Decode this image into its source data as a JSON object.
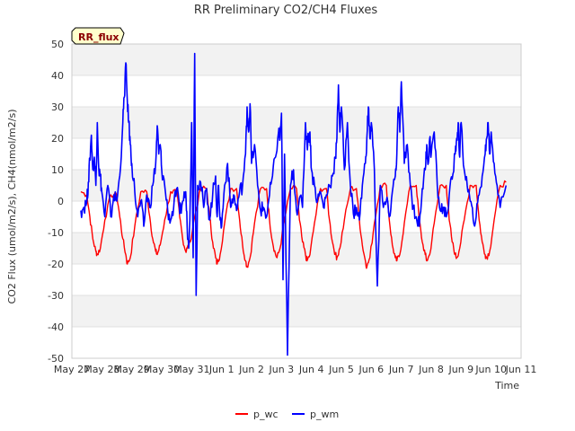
{
  "chart_data": {
    "type": "line",
    "title": "RR Preliminary CO2/CH4 Fluxes",
    "xlabel": "Time",
    "ylabel": "CO2 Flux (umol/m2/s), CH4(nmol/m2/s)",
    "badge": "RR_flux",
    "ylim": [
      -50,
      50
    ],
    "xlim": [
      0,
      15
    ],
    "yticks": [
      -50,
      -40,
      -30,
      -20,
      -10,
      0,
      10,
      20,
      30,
      40,
      50
    ],
    "xtick_labels": [
      "May 27",
      "May 28",
      "May 29",
      "May 30",
      "May 31",
      "Jun 1",
      "Jun 2",
      "Jun 3",
      "Jun 4",
      "Jun 5",
      "Jun 6",
      "Jun 7",
      "Jun 8",
      "Jun 9",
      "Jun 10",
      "Jun 11"
    ],
    "grid": true,
    "legend_position": "bottom",
    "colors": {
      "p_wc": "#ff0000",
      "p_wm": "#0000ff",
      "band": "#f2f2f2",
      "badge_bg": "#ffffcc"
    },
    "series": [
      {
        "name": "p_wc",
        "x": [
          0.3,
          0.5,
          0.6,
          0.7,
          0.8,
          0.85,
          0.95,
          1.1,
          1.3,
          1.5,
          1.6,
          1.7,
          1.8,
          1.85,
          1.95,
          2.1,
          2.3,
          2.5,
          2.6,
          2.7,
          2.8,
          2.85,
          2.95,
          3.1,
          3.3,
          3.5,
          3.6,
          3.7,
          3.8,
          3.85,
          3.95,
          4.1,
          4.3,
          4.5,
          4.6,
          4.7,
          4.8,
          4.85,
          4.95,
          5.1,
          5.3,
          5.5,
          5.6,
          5.7,
          5.8,
          5.85,
          5.95,
          6.1,
          6.3,
          6.5,
          6.6,
          6.7,
          6.8,
          6.85,
          6.95,
          7.1,
          7.3,
          7.5,
          7.6,
          7.7,
          7.8,
          7.85,
          7.95,
          8.1,
          8.3,
          8.5,
          8.6,
          8.7,
          8.8,
          8.85,
          8.95,
          9.1,
          9.3,
          9.5,
          9.6,
          9.7,
          9.8,
          9.85,
          9.95,
          10.1,
          10.3,
          10.5,
          10.6,
          10.7,
          10.8,
          10.85,
          10.95,
          11.1,
          11.3,
          11.5,
          11.6,
          11.7,
          11.8,
          11.85,
          11.95,
          12.1,
          12.3,
          12.5,
          12.6,
          12.7,
          12.8,
          12.85,
          12.95,
          13.1,
          13.3,
          13.5,
          13.6,
          13.7,
          13.8,
          13.85,
          13.95,
          14.1,
          14.3,
          14.5
        ],
        "values": [
          3,
          2,
          -5,
          -12,
          -16,
          -17,
          -15,
          -6,
          2,
          2,
          -5,
          -12,
          -17,
          -20,
          -18,
          -8,
          3,
          3,
          -5,
          -12,
          -16,
          -17,
          -14,
          -6,
          3,
          3,
          -5,
          -12,
          -16,
          -15,
          -13,
          -5,
          4,
          4,
          -5,
          -13,
          -18,
          -20,
          -17,
          -7,
          4,
          4,
          -6,
          -14,
          -19,
          -21,
          -18,
          -7,
          4,
          4,
          -6,
          -13,
          -17,
          -18,
          -15,
          -6,
          4,
          4,
          -6,
          -13,
          -17,
          -19,
          -17,
          -7,
          4,
          4,
          -6,
          -13,
          -17,
          -18,
          -15,
          -6,
          4,
          4,
          -6,
          -14,
          -19,
          -21,
          -18,
          -7,
          5,
          5,
          -6,
          -14,
          -18,
          -19,
          -17,
          -7,
          5,
          5,
          -6,
          -13,
          -17,
          -19,
          -17,
          -7,
          5,
          5,
          -6,
          -13,
          -17,
          -18,
          -15,
          -6,
          5,
          5,
          -6,
          -13,
          -17,
          -18,
          -16,
          -6,
          5,
          6
        ]
      },
      {
        "name": "p_wm",
        "x": [
          0.3,
          0.4,
          0.5,
          0.55,
          0.6,
          0.65,
          0.7,
          0.75,
          0.8,
          0.85,
          0.9,
          0.95,
          1.0,
          1.1,
          1.2,
          1.3,
          1.4,
          1.5,
          1.6,
          1.7,
          1.75,
          1.8,
          1.85,
          1.9,
          1.95,
          2.0,
          2.1,
          2.2,
          2.3,
          2.4,
          2.5,
          2.6,
          2.7,
          2.8,
          2.85,
          2.9,
          2.95,
          3.0,
          3.1,
          3.2,
          3.3,
          3.4,
          3.5,
          3.6,
          3.7,
          3.8,
          3.85,
          3.9,
          3.95,
          4.0,
          4.05,
          4.1,
          4.15,
          4.2,
          4.3,
          4.4,
          4.5,
          4.6,
          4.7,
          4.8,
          4.85,
          4.9,
          4.95,
          5.0,
          5.1,
          5.2,
          5.3,
          5.4,
          5.5,
          5.6,
          5.7,
          5.8,
          5.85,
          5.9,
          5.95,
          6.0,
          6.1,
          6.2,
          6.3,
          6.4,
          6.5,
          6.6,
          6.7,
          6.8,
          6.9,
          6.95,
          7.0,
          7.05,
          7.1,
          7.2,
          7.3,
          7.4,
          7.5,
          7.6,
          7.7,
          7.8,
          7.85,
          7.9,
          7.95,
          8.0,
          8.1,
          8.2,
          8.3,
          8.4,
          8.5,
          8.6,
          8.7,
          8.8,
          8.85,
          8.9,
          8.95,
          9.0,
          9.1,
          9.2,
          9.3,
          9.4,
          9.5,
          9.6,
          9.7,
          9.8,
          9.85,
          9.9,
          9.95,
          10.0,
          10.1,
          10.2,
          10.3,
          10.4,
          10.5,
          10.6,
          10.7,
          10.8,
          10.85,
          10.9,
          10.95,
          11.0,
          11.1,
          11.2,
          11.3,
          11.4,
          11.5,
          11.6,
          11.7,
          11.8,
          11.85,
          11.9,
          11.95,
          12.0,
          12.1,
          12.2,
          12.3,
          12.4,
          12.5,
          12.6,
          12.7,
          12.8,
          12.85,
          12.9,
          12.95,
          13.0,
          13.1,
          13.2,
          13.3,
          13.4,
          13.5,
          13.6,
          13.7,
          13.8,
          13.85,
          13.9,
          13.95,
          14.0,
          14.1,
          14.2,
          14.3,
          14.5
        ],
        "values": [
          -3,
          -2,
          0,
          6,
          13,
          21,
          10,
          14,
          5,
          25,
          10,
          8,
          3,
          -5,
          5,
          -5,
          2,
          0,
          8,
          25,
          33,
          44,
          32,
          25,
          18,
          12,
          3,
          -5,
          0,
          -8,
          2,
          -2,
          5,
          12,
          24,
          15,
          18,
          10,
          5,
          -3,
          -6,
          -2,
          4,
          -4,
          0,
          3,
          -8,
          -15,
          0,
          25,
          -18,
          47,
          -30,
          5,
          6,
          -2,
          4,
          -6,
          2,
          8,
          -5,
          5,
          -6,
          -8,
          5,
          12,
          -2,
          2,
          -3,
          3,
          5,
          15,
          30,
          22,
          31,
          12,
          18,
          5,
          -3,
          -2,
          -5,
          2,
          8,
          14,
          22,
          20,
          28,
          -25,
          15,
          -49,
          5,
          10,
          -3,
          1,
          -2,
          25,
          18,
          20,
          22,
          10,
          5,
          0,
          3,
          -2,
          2,
          5,
          8,
          14,
          20,
          37,
          22,
          30,
          10,
          25,
          5,
          -4,
          -2,
          -6,
          5,
          12,
          20,
          30,
          20,
          25,
          10,
          -27,
          5,
          -2,
          0,
          -5,
          3,
          8,
          15,
          30,
          22,
          38,
          12,
          18,
          5,
          -2,
          -5,
          -8,
          4,
          10,
          18,
          12,
          20,
          15,
          22,
          5,
          -3,
          -2,
          -5,
          2,
          7,
          15,
          20,
          25,
          14,
          25,
          10,
          5,
          0,
          -6,
          -5,
          2,
          8,
          15,
          20,
          25,
          15,
          22,
          12,
          5,
          -2,
          5
        ]
      }
    ]
  }
}
